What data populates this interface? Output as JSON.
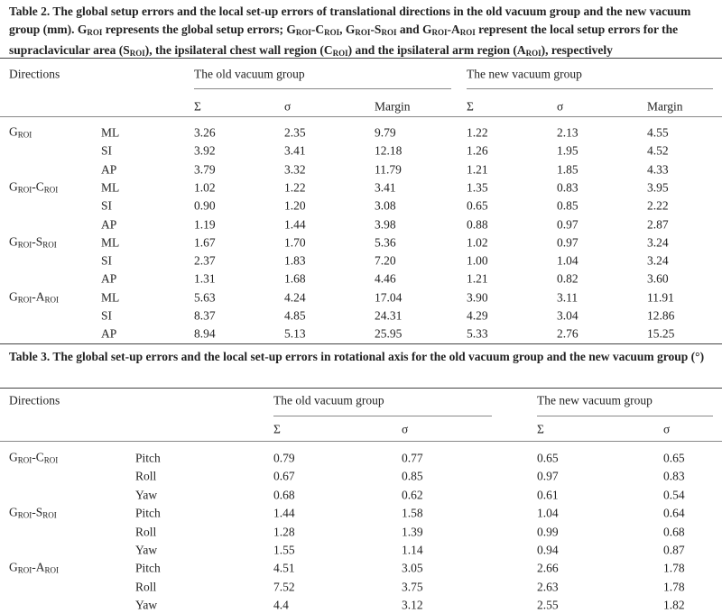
{
  "table2": {
    "caption": [
      "Table 2. The global setup errors and the local set-up errors of translational directions in the old vacuum group and the new vacuum group (mm). G",
      "ROI",
      " represents the global setup errors; G",
      "ROI",
      "-C",
      "ROI",
      ", G",
      "ROI",
      "-S",
      "ROI",
      " and G",
      "ROI",
      "-A",
      "ROI",
      " represent the local setup errors for the supraclavicular area (S",
      "ROI",
      "), the ipsilateral chest wall region (C",
      "ROI",
      ") and the ipsilateral arm region (A",
      "ROI",
      "), respectively"
    ],
    "header": {
      "directions": "Directions",
      "groups": [
        "The old vacuum group",
        "The new vacuum group"
      ],
      "columns": [
        "Σ",
        "σ",
        "Margin",
        "Σ",
        "σ",
        "Margin"
      ]
    },
    "groups": [
      {
        "label": [
          "G",
          "ROI"
        ],
        "rows": [
          {
            "direction": "ML",
            "values": [
              "3.26",
              "2.35",
              "9.79",
              "1.22",
              "2.13",
              "4.55"
            ]
          },
          {
            "direction": "SI",
            "values": [
              "3.92",
              "3.41",
              "12.18",
              "1.26",
              "1.95",
              "4.52"
            ]
          },
          {
            "direction": "AP",
            "values": [
              "3.79",
              "3.32",
              "11.79",
              "1.21",
              "1.85",
              "4.33"
            ]
          }
        ]
      },
      {
        "label": [
          "G",
          "ROI",
          "-C",
          "ROI"
        ],
        "rows": [
          {
            "direction": "ML",
            "values": [
              "1.02",
              "1.22",
              "3.41",
              "1.35",
              "0.83",
              "3.95"
            ]
          },
          {
            "direction": "SI",
            "values": [
              "0.90",
              "1.20",
              "3.08",
              "0.65",
              "0.85",
              "2.22"
            ]
          },
          {
            "direction": "AP",
            "values": [
              "1.19",
              "1.44",
              "3.98",
              "0.88",
              "0.97",
              "2.87"
            ]
          }
        ]
      },
      {
        "label": [
          "G",
          "ROI",
          "-S",
          "ROI"
        ],
        "rows": [
          {
            "direction": "ML",
            "values": [
              "1.67",
              "1.70",
              "5.36",
              "1.02",
              "0.97",
              "3.24"
            ]
          },
          {
            "direction": "SI",
            "values": [
              "2.37",
              "1.83",
              "7.20",
              "1.00",
              "1.04",
              "3.24"
            ]
          },
          {
            "direction": "AP",
            "values": [
              "1.31",
              "1.68",
              "4.46",
              "1.21",
              "0.82",
              "3.60"
            ]
          }
        ]
      },
      {
        "label": [
          "G",
          "ROI",
          "-A",
          "ROI"
        ],
        "rows": [
          {
            "direction": "ML",
            "values": [
              "5.63",
              "4.24",
              "17.04",
              "3.90",
              "3.11",
              "11.91"
            ]
          },
          {
            "direction": "SI",
            "values": [
              "8.37",
              "4.85",
              "24.31",
              "4.29",
              "3.04",
              "12.86"
            ]
          },
          {
            "direction": "AP",
            "values": [
              "8.94",
              "5.13",
              "25.95",
              "5.33",
              "2.76",
              "15.25"
            ]
          }
        ]
      }
    ]
  },
  "table3": {
    "caption": [
      "Table 3. The global set-up errors and the local set-up errors in rotational axis for the old vacuum group and the new vacuum group (°)"
    ],
    "header": {
      "directions": "Directions",
      "groups": [
        "The old vacuum group",
        "The new vacuum group"
      ],
      "columns": [
        "Σ",
        "σ",
        "Σ",
        "σ"
      ]
    },
    "groups": [
      {
        "label": [
          "G",
          "ROI",
          "-C",
          "ROI"
        ],
        "rows": [
          {
            "direction": "Pitch",
            "values": [
              "0.79",
              "0.77",
              "0.65",
              "0.65"
            ]
          },
          {
            "direction": "Roll",
            "values": [
              "0.67",
              "0.85",
              "0.97",
              "0.83"
            ]
          },
          {
            "direction": "Yaw",
            "values": [
              "0.68",
              "0.62",
              "0.61",
              "0.54"
            ]
          }
        ]
      },
      {
        "label": [
          "G",
          "ROI",
          "-S",
          "ROI"
        ],
        "rows": [
          {
            "direction": "Pitch",
            "values": [
              "1.44",
              "1.58",
              "1.04",
              "0.64"
            ]
          },
          {
            "direction": "Roll",
            "values": [
              "1.28",
              "1.39",
              "0.99",
              "0.68"
            ]
          },
          {
            "direction": "Yaw",
            "values": [
              "1.55",
              "1.14",
              "0.94",
              "0.87"
            ]
          }
        ]
      },
      {
        "label": [
          "G",
          "ROI",
          "-A",
          "ROI"
        ],
        "rows": [
          {
            "direction": "Pitch",
            "values": [
              "4.51",
              "3.05",
              "2.66",
              "1.78"
            ]
          },
          {
            "direction": "Roll",
            "values": [
              "7.52",
              "3.75",
              "2.63",
              "1.78"
            ]
          },
          {
            "direction": "Yaw",
            "values": [
              "4.4",
              "3.12",
              "2.55",
              "1.82"
            ]
          }
        ]
      }
    ]
  }
}
